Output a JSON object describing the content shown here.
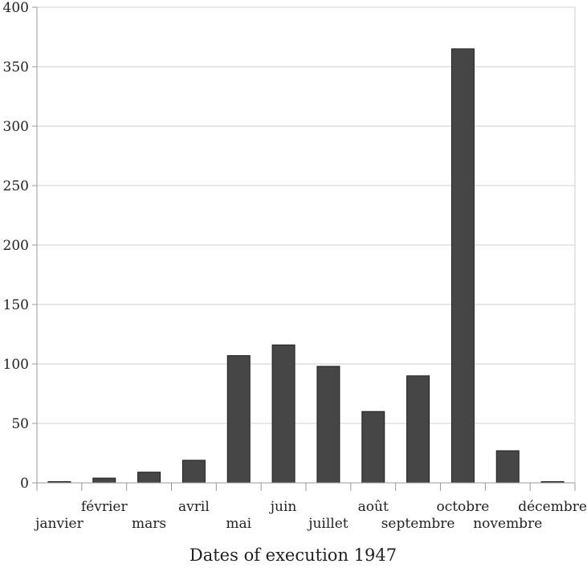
{
  "chart_data": {
    "type": "bar",
    "title": "",
    "xlabel": "Dates of execution 1947",
    "ylabel": "",
    "categories": [
      "janvier",
      "février",
      "mars",
      "avril",
      "mai",
      "juin",
      "juillet",
      "août",
      "septembre",
      "octobre",
      "novembre",
      "décembre"
    ],
    "values": [
      1,
      4,
      9,
      19,
      107,
      116,
      98,
      60,
      90,
      365,
      27,
      1
    ],
    "ylim": [
      0,
      400
    ],
    "yticks": [
      "0",
      "50",
      "100",
      "150",
      "200",
      "250",
      "300",
      "350",
      "400"
    ],
    "grid": true,
    "legend": "none",
    "bar_color": "#464646",
    "bar_outline": "#1e1e1e",
    "grid_color": "#cfcfcf"
  }
}
